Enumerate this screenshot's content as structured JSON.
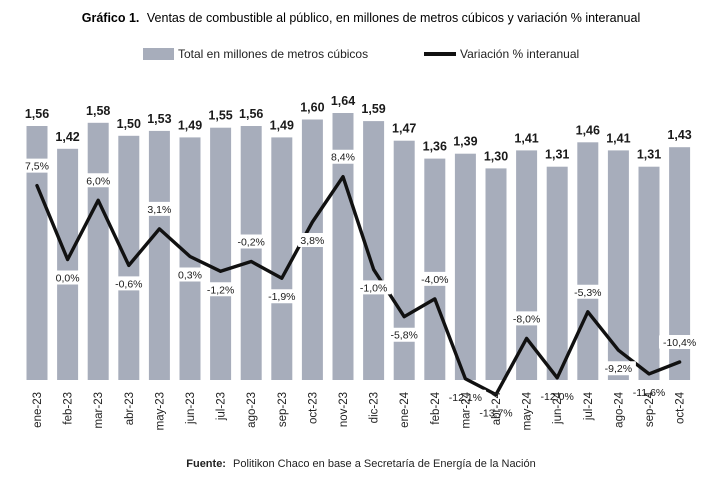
{
  "title_prefix": "Gráfico 1.",
  "title_text": "Ventas de combustible al público, en millones de metros cúbicos y variación % interanual",
  "source_prefix": "Fuente:",
  "source_text": "Politikon Chaco en base a Secretaría de Energía de la Nación",
  "colors": {
    "bar": "#a7adbb",
    "line": "#111111",
    "label_bg": "#ffffff"
  },
  "chart_data": {
    "type": "bar",
    "categories": [
      "ene-23",
      "feb-23",
      "mar-23",
      "abr-23",
      "may-23",
      "jun-23",
      "jul-23",
      "ago-23",
      "sep-23",
      "oct-23",
      "nov-23",
      "dic-23",
      "ene-24",
      "feb-24",
      "mar-24",
      "abr-24",
      "may-24",
      "jun-24",
      "jul-24",
      "ago-24",
      "sep-24",
      "oct-24"
    ],
    "series": [
      {
        "name": "Total en millones de metros cúbicos",
        "kind": "bar",
        "values": [
          1.56,
          1.42,
          1.58,
          1.5,
          1.53,
          1.49,
          1.55,
          1.56,
          1.49,
          1.6,
          1.64,
          1.59,
          1.47,
          1.36,
          1.39,
          1.3,
          1.41,
          1.31,
          1.46,
          1.41,
          1.31,
          1.43
        ],
        "labels": [
          "1,56",
          "1,42",
          "1,58",
          "1,50",
          "1,53",
          "1,49",
          "1,55",
          "1,56",
          "1,49",
          "1,60",
          "1,64",
          "1,59",
          "1,47",
          "1,36",
          "1,39",
          "1,30",
          "1,41",
          "1,31",
          "1,46",
          "1,41",
          "1,31",
          "1,43"
        ]
      },
      {
        "name": "Variación % interanual",
        "kind": "line",
        "values": [
          7.5,
          0.0,
          6.0,
          -0.6,
          3.1,
          0.3,
          -1.2,
          -0.2,
          -1.9,
          3.8,
          8.4,
          -1.0,
          -5.8,
          -4.0,
          -12.1,
          -13.7,
          -8.0,
          -12.0,
          -5.3,
          -9.2,
          -11.6,
          -10.4
        ],
        "labels": [
          "7,5%",
          "0,0%",
          "6,0%",
          "-0,6%",
          "3,1%",
          "0,3%",
          "-1,2%",
          "-0,2%",
          "-1,9%",
          "3,8%",
          "8,4%",
          "-1,0%",
          "-5,8%",
          "-4,0%",
          "-12,1%",
          "-13,7%",
          "-8,0%",
          "-12,0%",
          "-5,3%",
          "-9,2%",
          "-11,6%",
          "-10,4%"
        ]
      }
    ],
    "bar_ylim": [
      0,
      1.64
    ],
    "line_ylim": [
      -16,
      12
    ],
    "grid": false,
    "legend_position": "top-center"
  }
}
